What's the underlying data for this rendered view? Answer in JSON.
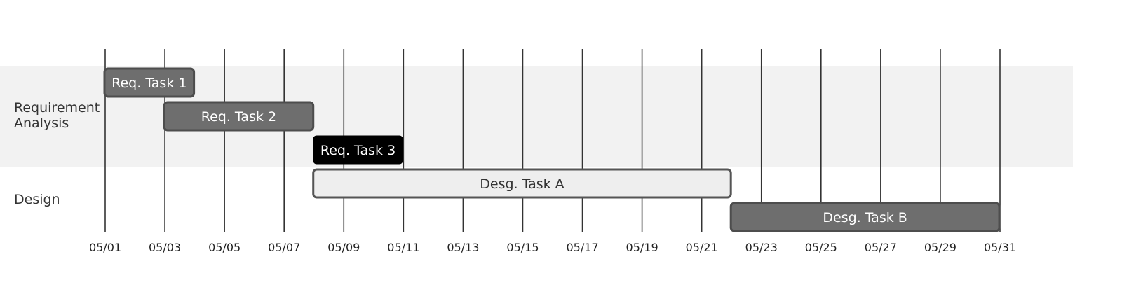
{
  "chart_data": {
    "type": "gantt",
    "date_format": "MM/DD",
    "x_range": [
      "05/01",
      "05/31"
    ],
    "x_ticks": [
      "05/01",
      "05/03",
      "05/05",
      "05/07",
      "05/09",
      "05/11",
      "05/13",
      "05/15",
      "05/17",
      "05/19",
      "05/21",
      "05/23",
      "05/25",
      "05/27",
      "05/29",
      "05/31"
    ],
    "grid": true,
    "sections": [
      {
        "name": "Requirement Analysis",
        "name_lines": [
          "Requirement",
          "Analysis"
        ],
        "tasks": [
          {
            "label": "Req. Task 1",
            "start": "05/01",
            "end": "05/04",
            "style": "default"
          },
          {
            "label": "Req. Task 2",
            "start": "05/03",
            "end": "05/08",
            "style": "default"
          },
          {
            "label": "Req. Task 3",
            "start": "05/08",
            "end": "05/11",
            "style": "critical"
          }
        ]
      },
      {
        "name": "Design",
        "name_lines": [
          "Design"
        ],
        "tasks": [
          {
            "label": "Desg. Task A",
            "start": "05/08",
            "end": "05/22",
            "style": "active"
          },
          {
            "label": "Desg. Task B",
            "start": "05/22",
            "end": "05/31",
            "style": "default"
          }
        ]
      }
    ],
    "colors": {
      "section_band": "#f2f2f2",
      "grid_line": "#333333",
      "default_fill": "#6e6e6e",
      "default_stroke": "#4d4d4d",
      "default_text": "#ffffff",
      "critical_fill": "#000000",
      "critical_text": "#ffffff",
      "active_fill": "#eeeeee",
      "active_stroke": "#555555",
      "active_text": "#333333"
    }
  }
}
